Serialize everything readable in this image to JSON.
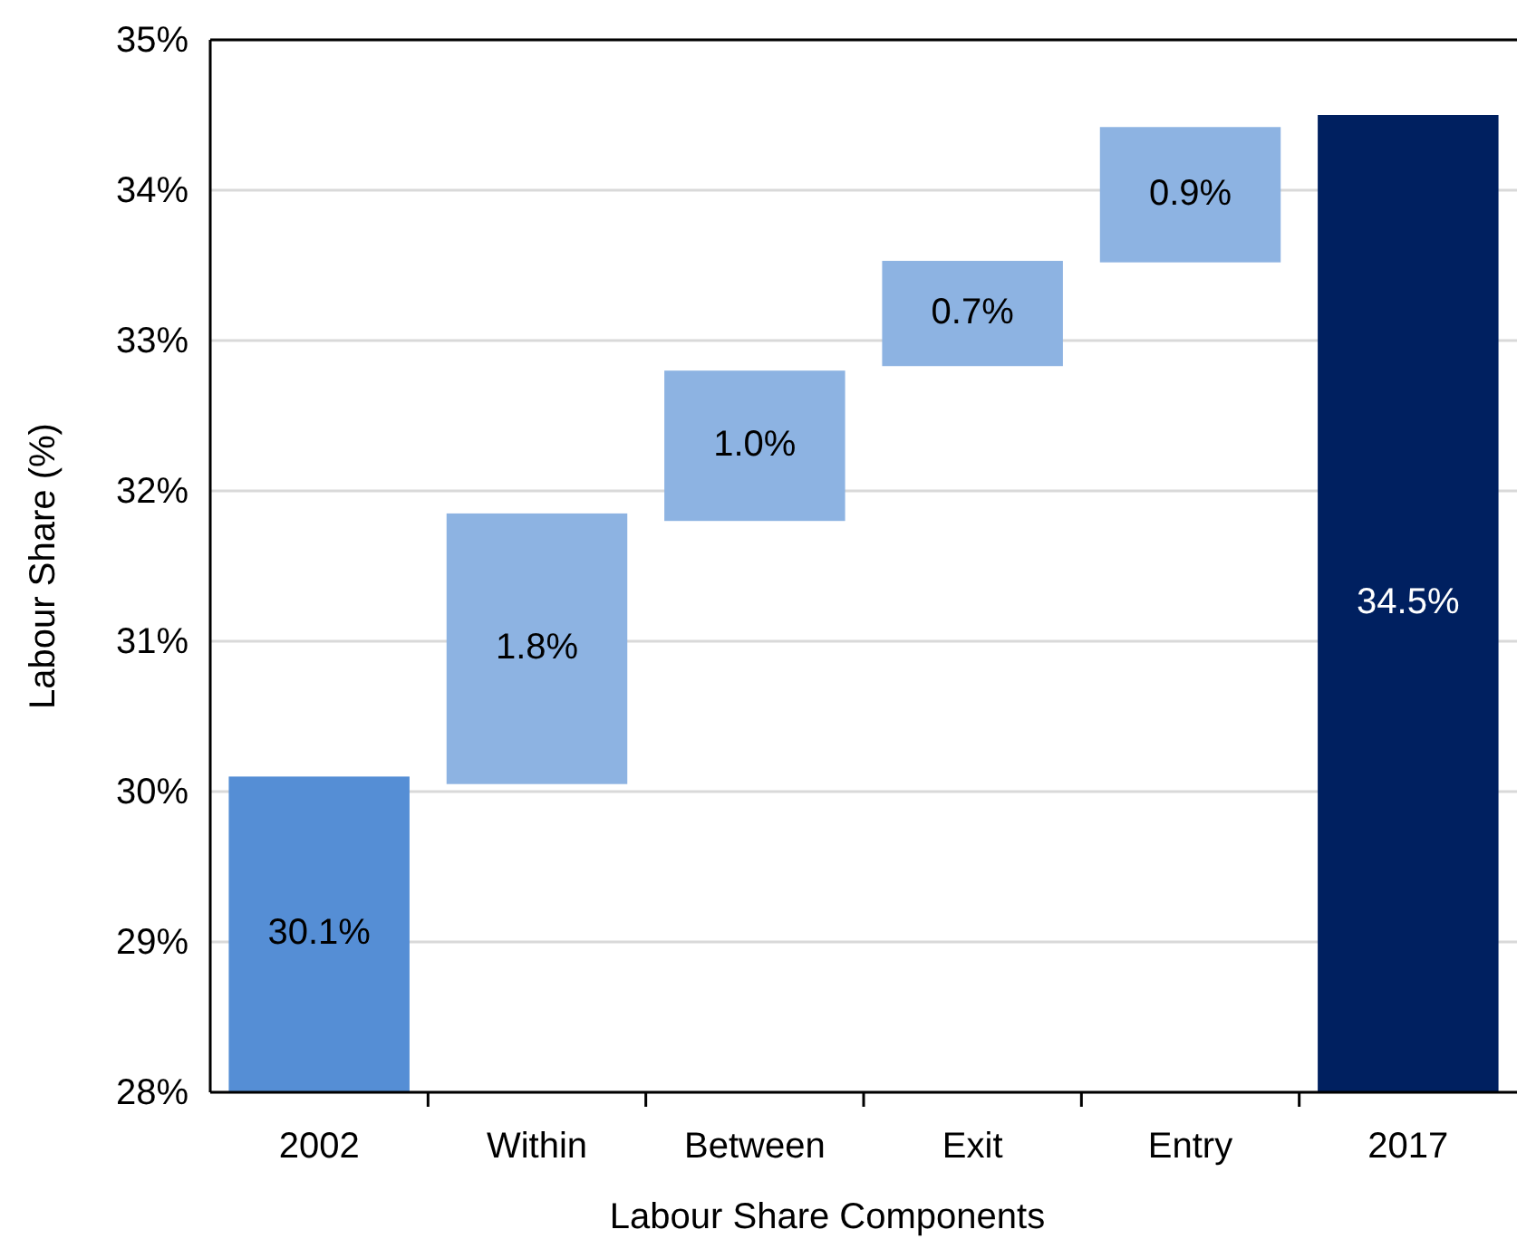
{
  "chart_data": {
    "type": "bar",
    "xlabel": "Labour Share Components",
    "ylabel": "Labour Share (%)",
    "categories": [
      "2002",
      "Within",
      "Between",
      "Exit",
      "Entry",
      "2017"
    ],
    "values": [
      30.1,
      1.8,
      1.0,
      0.7,
      0.9,
      34.5
    ],
    "base": [
      null,
      30.05,
      31.8,
      32.83,
      33.52,
      null
    ],
    "colors": [
      "#558ed5",
      "#8db3e2",
      "#8db3e2",
      "#8db3e2",
      "#8db3e2",
      "#002060"
    ],
    "value_labels": [
      "30.1%",
      "1.8%",
      "1.0%",
      "0.7%",
      "0.9%",
      "34.5%"
    ],
    "ylim": [
      28,
      35
    ],
    "yticks": [
      {
        "value": 28,
        "label": "28%"
      },
      {
        "value": 29,
        "label": "29%"
      },
      {
        "value": 30,
        "label": "30%"
      },
      {
        "value": 31,
        "label": "31%"
      },
      {
        "value": 32,
        "label": "32%"
      },
      {
        "value": 33,
        "label": "33%"
      },
      {
        "value": 34,
        "label": "34%"
      },
      {
        "value": 35,
        "label": "35%"
      }
    ],
    "grid": "y"
  }
}
